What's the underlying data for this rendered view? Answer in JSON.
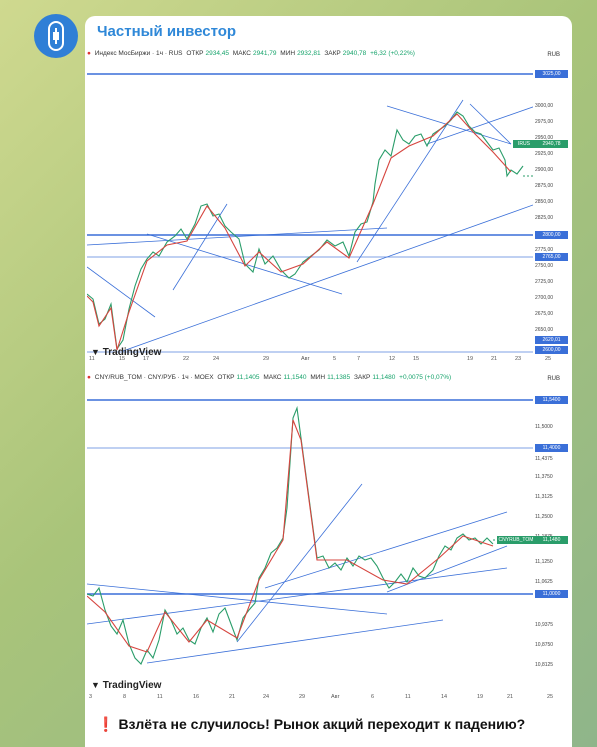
{
  "channel": {
    "name": "Частный инвестор",
    "avatar_icon": "info-candle-icon"
  },
  "chart1": {
    "symbol": "Индекс МосБиржи · 1ч · RUS",
    "ohlc": {
      "open_label": "ОТКР",
      "open": "2934,45",
      "high_label": "МАКС",
      "high": "2941,79",
      "low_label": "МИН",
      "low": "2932,81",
      "close_label": "ЗАКР",
      "close": "2940,78",
      "change": "+6,32 (+0,22%)"
    },
    "currency": "RUB",
    "y_ticks": [
      "3000,00",
      "2975,00",
      "2950,00",
      "2925,00",
      "2900,00",
      "2875,00",
      "2850,00",
      "2825,00",
      "2775,00",
      "2750,00",
      "2725,00",
      "2700,00",
      "2675,00",
      "2650,00"
    ],
    "tags": {
      "top": "3025,00",
      "price": "2940,78",
      "price_symbol": "IRUS",
      "mid": "2800,00",
      "mid2": "2765,00",
      "low": "2620,01",
      "bottom": "2600,00"
    },
    "x_ticks": [
      "11",
      "15",
      "17",
      "22",
      "24",
      "29",
      "Авг",
      "5",
      "7",
      "12",
      "15",
      "19",
      "21",
      "23",
      "25"
    ],
    "brand": "TradingView"
  },
  "chart2": {
    "symbol": "CNY/RUB_TOM · CNY/РУБ · 1ч · MOEX",
    "ohlc": {
      "open_label": "ОТКР",
      "open": "11,1405",
      "high_label": "МАКС",
      "high": "11,1540",
      "low_label": "МИН",
      "low": "11,1385",
      "close_label": "ЗАКР",
      "close": "11,1480",
      "change": "+0,0075 (+0,07%)"
    },
    "currency": "RUB",
    "y_ticks": [
      "11,5000",
      "11,4375",
      "11,3750",
      "11,3125",
      "11,2500",
      "11,1875",
      "11,1250",
      "11,0625",
      "10,9375",
      "10,8750",
      "10,8125"
    ],
    "tags": {
      "top": "11,5400",
      "mid": "11,4000",
      "price": "11,1480",
      "price_symbol": "CNYRUB_TOM",
      "low": "11,0000"
    },
    "x_ticks": [
      "3",
      "8",
      "11",
      "16",
      "21",
      "24",
      "29",
      "Авг",
      "6",
      "11",
      "14",
      "19",
      "21",
      "25"
    ],
    "brand": "TradingView"
  },
  "caption": {
    "icon": "exclamation-icon",
    "text": "Взлёта не случилось! Рынок акций переходит к падению?"
  }
}
